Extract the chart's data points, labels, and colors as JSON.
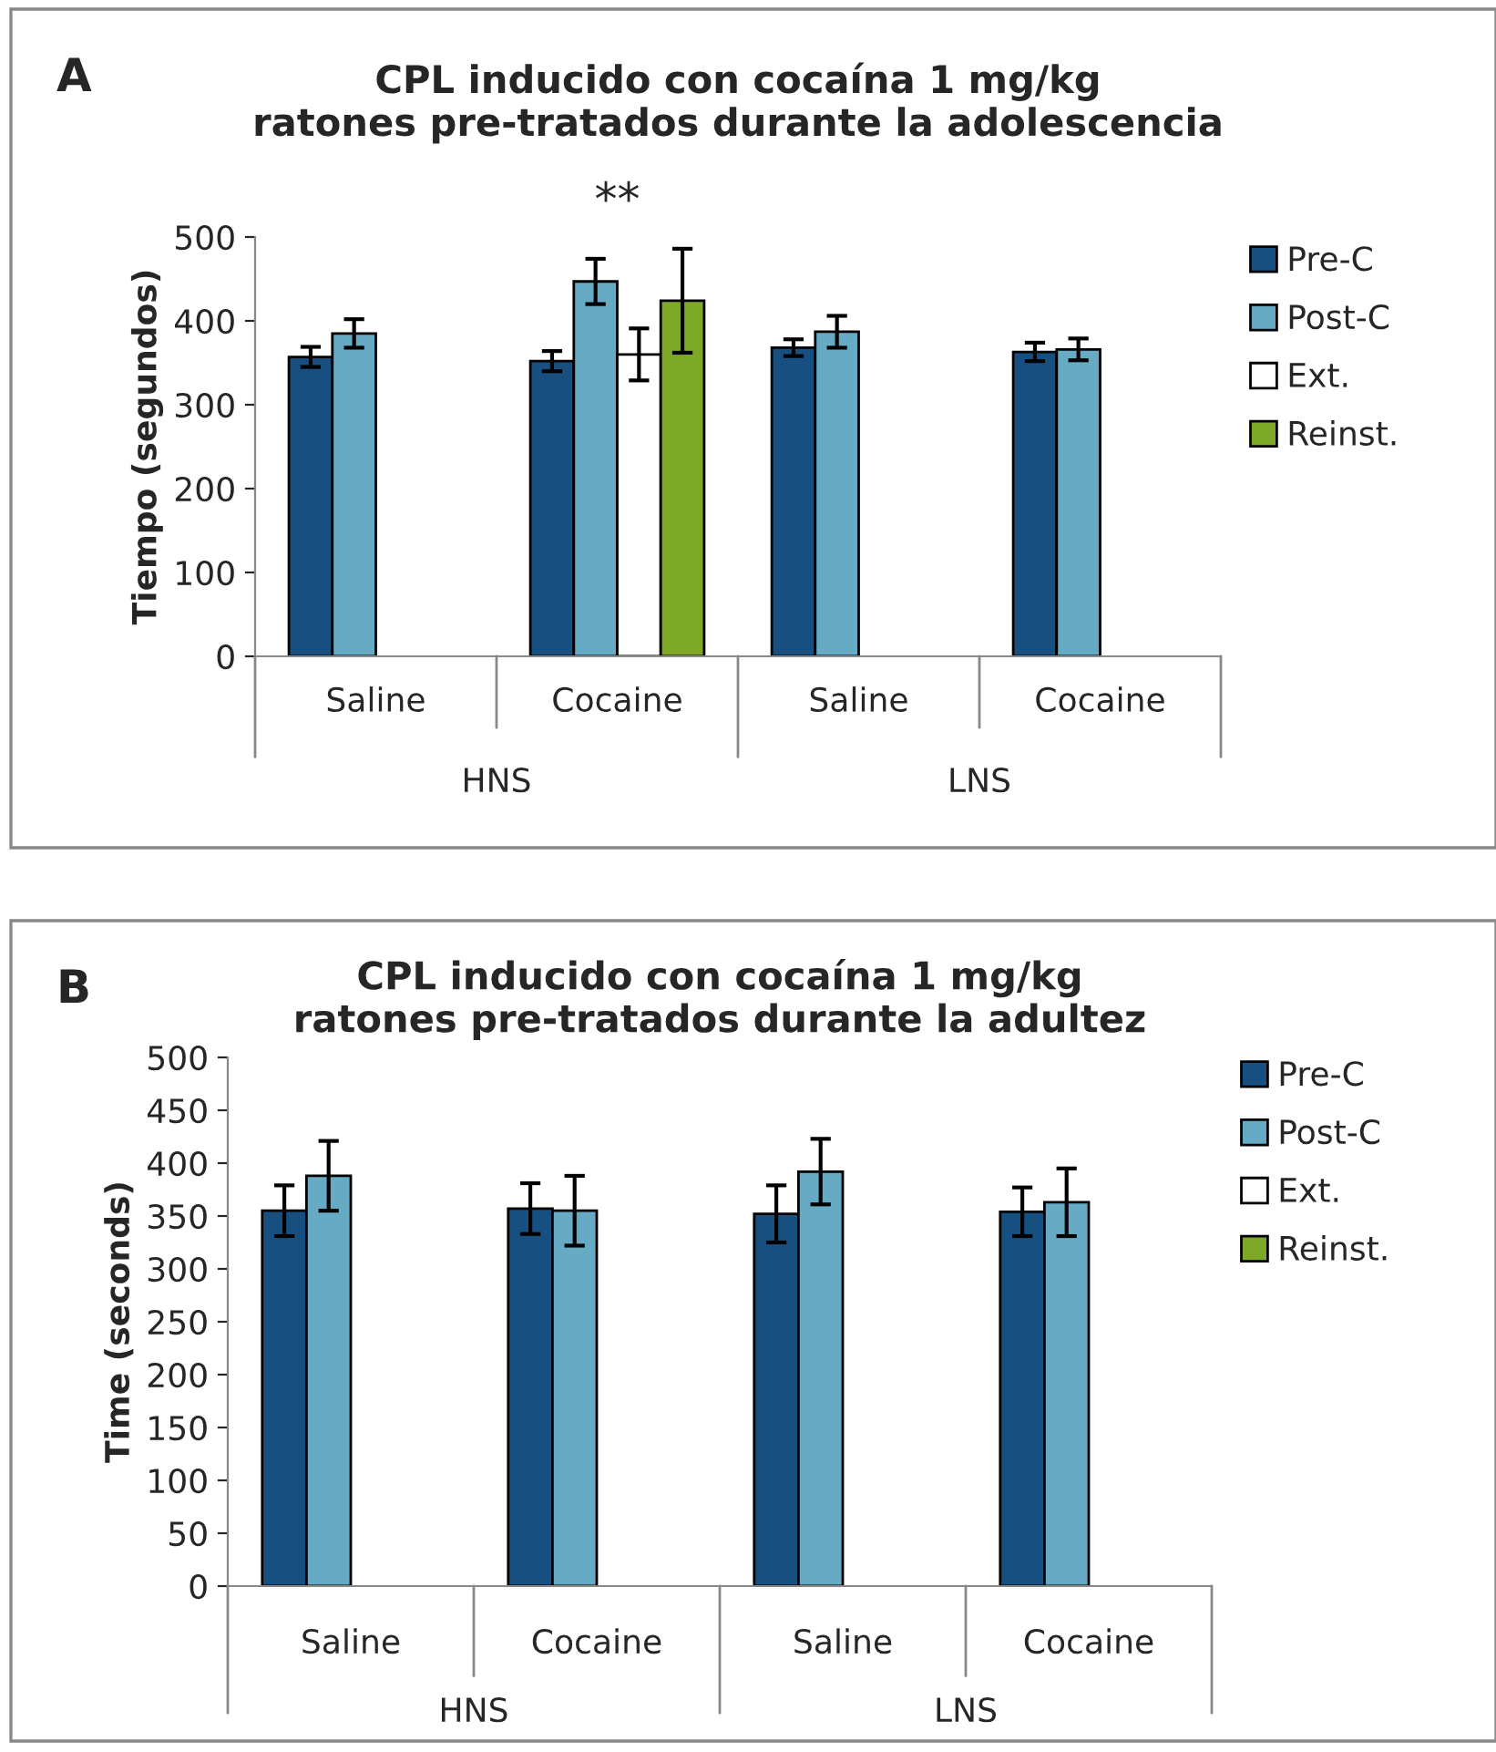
{
  "chart_data": [
    {
      "type": "bar",
      "title": "CPL inducido con cocaína 1 mg/kg\nratones pre-tratados durante la adolescencia",
      "ylabel": "Tiempo (segundos)",
      "categories": [
        "Saline",
        "Cocaine",
        "Saline",
        "Cocaine"
      ],
      "series": [
        {
          "name": "Pre-C",
          "color": "#174f80",
          "values": [
            357,
            352,
            368,
            363
          ],
          "errors": [
            12,
            12,
            10,
            11
          ]
        },
        {
          "name": "Post-C",
          "color": "#66aac4",
          "values": [
            385,
            447,
            387,
            366
          ],
          "errors": [
            17,
            27,
            19,
            13
          ]
        },
        {
          "name": "Ext.",
          "color": "#ffffff",
          "values": [
            null,
            360,
            null,
            null
          ],
          "errors": [
            null,
            31,
            null,
            null
          ]
        },
        {
          "name": "Reinst.",
          "color": "#7ea828",
          "values": [
            null,
            424,
            null,
            null
          ],
          "errors": [
            null,
            62,
            null,
            null
          ]
        }
      ],
      "ylim": [
        0,
        500
      ],
      "yticks": [
        0,
        100,
        200,
        300,
        400,
        500
      ],
      "grid": false,
      "legend": "right",
      "annotations": [
        "A",
        "HNS",
        "LNS",
        "**"
      ]
    },
    {
      "type": "bar",
      "title": "CPL inducido con cocaína 1 mg/kg\nratones pre-tratados durante la adultez",
      "ylabel": "Time (seconds)",
      "categories": [
        "Saline",
        "Cocaine",
        "Saline",
        "Cocaine"
      ],
      "series": [
        {
          "name": "Pre-C",
          "color": "#174f80",
          "values": [
            355,
            357,
            352,
            354
          ],
          "errors": [
            24,
            24,
            27,
            23
          ]
        },
        {
          "name": "Post-C",
          "color": "#66aac4",
          "values": [
            388,
            355,
            392,
            363
          ],
          "errors": [
            33,
            33,
            31,
            32
          ]
        },
        {
          "name": "Ext.",
          "color": "#ffffff",
          "values": [
            null,
            null,
            null,
            null
          ]
        },
        {
          "name": "Reinst.",
          "color": "#7ea828",
          "values": [
            null,
            null,
            null,
            null
          ]
        }
      ],
      "ylim": [
        0,
        500
      ],
      "yticks": [
        0,
        50,
        100,
        150,
        200,
        250,
        300,
        350,
        400,
        450,
        500
      ],
      "grid": false,
      "legend": "right",
      "annotations": [
        "B",
        "HNS",
        "LNS"
      ]
    }
  ]
}
